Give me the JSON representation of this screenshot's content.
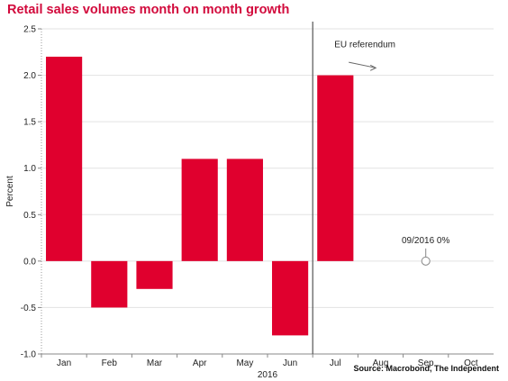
{
  "header": {
    "title": "Retail sales volumes month on month growth"
  },
  "footer": {
    "source": "Source: Macrobond, The Independent"
  },
  "colors": {
    "bar": "#e0002e",
    "title": "#d20a3c",
    "grid": "#e3e3e3",
    "divider": "#555555"
  },
  "chart_data": {
    "type": "bar",
    "title": "Retail sales volumes month on month growth",
    "xlabel": "2016",
    "ylabel": "Percent",
    "ylim": [
      -1.0,
      2.5
    ],
    "yticks": [
      "2.5",
      "2.0",
      "1.5",
      "1.0",
      "0.5",
      "0.0",
      "-0.5",
      "-1.0"
    ],
    "ytick_values": [
      2.5,
      2.0,
      1.5,
      1.0,
      0.5,
      0.0,
      -0.5,
      -1.0
    ],
    "categories": [
      "Jan",
      "Feb",
      "Mar",
      "Apr",
      "May",
      "Jun",
      "Jul",
      "Aug",
      "Sep",
      "Oct"
    ],
    "values": [
      2.2,
      -0.5,
      -0.3,
      1.1,
      1.1,
      -0.8,
      2.0,
      null,
      null,
      null
    ],
    "grid": true,
    "annotations": [
      {
        "text": "EU referendum"
      },
      {
        "text": "09/2016 0%",
        "category": "Sep",
        "value": 0.0
      }
    ]
  }
}
